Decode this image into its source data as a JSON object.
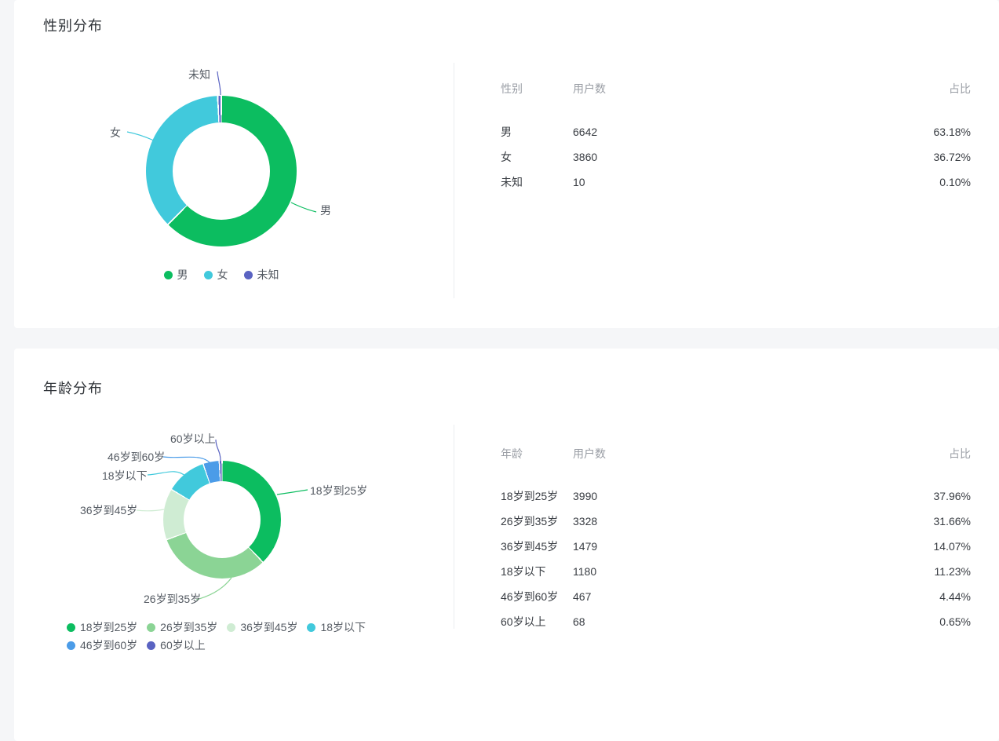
{
  "page": {
    "background_color": "#f5f6f8",
    "card_color": "#ffffff"
  },
  "gender": {
    "title": "性别分布",
    "table_headers": [
      "性别",
      "用户数",
      "占比"
    ]
  },
  "age": {
    "title": "年龄分布",
    "table_headers": [
      "年龄",
      "用户数",
      "占比"
    ]
  },
  "chart_data": [
    {
      "type": "pie",
      "variant": "donut",
      "title": "性别分布",
      "legend_position": "bottom-center",
      "start_angle": "12-oclock-clockwise",
      "slices": [
        {
          "label": "男",
          "value": 6642,
          "percent": "63.18%",
          "color": "#0cbd60"
        },
        {
          "label": "女",
          "value": 3860,
          "percent": "36.72%",
          "color": "#41c9dc"
        },
        {
          "label": "未知",
          "value": 10,
          "percent": "0.10%",
          "color": "#5a63c2"
        }
      ]
    },
    {
      "type": "pie",
      "variant": "donut",
      "title": "年龄分布",
      "legend_position": "bottom-left",
      "start_angle": "12-oclock-clockwise",
      "slices": [
        {
          "label": "18岁到25岁",
          "value": 3990,
          "percent": "37.96%",
          "color": "#0cbd60"
        },
        {
          "label": "26岁到35岁",
          "value": 3328,
          "percent": "31.66%",
          "color": "#8bd495"
        },
        {
          "label": "36岁到45岁",
          "value": 1479,
          "percent": "14.07%",
          "color": "#cfecd3"
        },
        {
          "label": "18岁以下",
          "value": 1180,
          "percent": "11.23%",
          "color": "#41c9dc"
        },
        {
          "label": "46岁到60岁",
          "value": 467,
          "percent": "4.44%",
          "color": "#4b9ce8"
        },
        {
          "label": "60岁以上",
          "value": 68,
          "percent": "0.65%",
          "color": "#5a63c2"
        }
      ]
    }
  ]
}
